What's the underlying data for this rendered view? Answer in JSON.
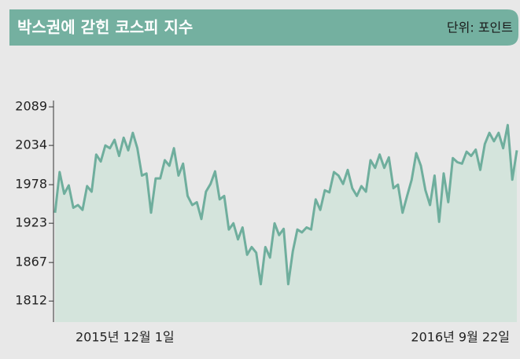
{
  "chart_data": {
    "type": "line",
    "title": "박스권에 갇힌 코스피 지수",
    "unit_label": "단위: 포인트",
    "categories": [
      "2015년 12월 1일",
      null,
      null,
      null,
      null,
      null,
      null,
      null,
      null,
      null,
      null,
      null,
      null,
      null,
      null,
      null,
      null,
      null,
      null,
      null,
      null,
      null,
      null,
      null,
      null,
      null,
      null,
      null,
      null,
      null,
      null,
      null,
      null,
      null,
      null,
      null,
      null,
      null,
      null,
      null,
      null,
      null,
      null,
      null,
      null,
      null,
      null,
      null,
      null,
      null,
      null,
      null,
      null,
      null,
      null,
      null,
      null,
      null,
      null,
      null,
      null,
      null,
      null,
      null,
      null,
      null,
      null,
      null,
      null,
      null,
      null,
      null,
      null,
      null,
      null,
      null,
      null,
      null,
      null,
      null,
      null,
      null,
      null,
      null,
      null,
      null,
      null,
      null,
      null,
      null,
      null,
      null,
      null,
      null,
      null,
      null,
      null,
      null,
      null,
      null,
      null,
      "2016년 9월 22일"
    ],
    "values": [
      1938,
      1996,
      1965,
      1977,
      1945,
      1949,
      1942,
      1976,
      1968,
      2021,
      2011,
      2034,
      2030,
      2042,
      2019,
      2045,
      2027,
      2052,
      2030,
      1991,
      1994,
      1938,
      1987,
      1987,
      2013,
      2005,
      2030,
      1991,
      2008,
      1962,
      1949,
      1953,
      1929,
      1968,
      1979,
      1997,
      1957,
      1962,
      1914,
      1923,
      1900,
      1917,
      1878,
      1889,
      1881,
      1836,
      1889,
      1874,
      1923,
      1906,
      1915,
      1836,
      1883,
      1914,
      1910,
      1917,
      1914,
      1957,
      1942,
      1970,
      1967,
      1996,
      1991,
      1979,
      1999,
      1973,
      1962,
      1976,
      1968,
      2013,
      2002,
      2021,
      2002,
      2017,
      1973,
      1978,
      1938,
      1962,
      1985,
      2023,
      2005,
      1970,
      1949,
      1991,
      1925,
      1994,
      1953,
      2016,
      2010,
      2008,
      2025,
      2019,
      2028,
      1999,
      2036,
      2052,
      2040,
      2052,
      2030,
      2063,
      1985,
      2027
    ],
    "color": "#6fae9d",
    "fill": "#d4e4dc",
    "ylim": [
      1782,
      2098
    ],
    "yticks": [
      1812,
      1867,
      1923,
      1978,
      2034,
      2089
    ],
    "grid": false
  }
}
